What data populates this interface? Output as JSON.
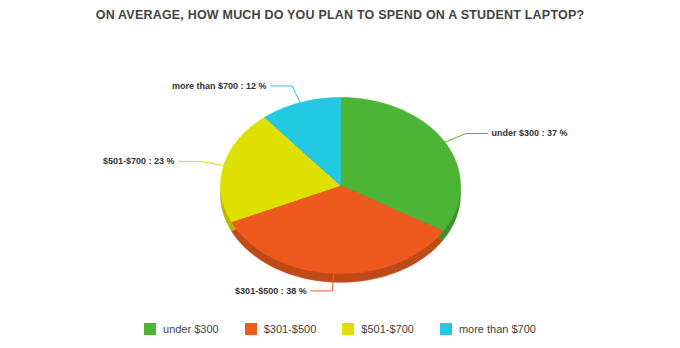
{
  "chart_data": {
    "type": "pie",
    "title": "ON AVERAGE, HOW MUCH DO YOU PLAN TO SPEND ON A STUDENT LAPTOP?",
    "categories": [
      "under $300",
      "$301-$500",
      "$501-$700",
      "more than $700"
    ],
    "values": [
      37,
      38,
      23,
      12
    ],
    "colors": [
      "#4db535",
      "#ee5a1e",
      "#dfe000",
      "#22c9e3"
    ],
    "data_labels": true,
    "value_labels": [
      "under $300 : 37 %",
      "$301-$500 : 38 %",
      "$501-$700 : 23 %",
      "more than $700 : 12 %"
    ],
    "legend": "bottom"
  }
}
